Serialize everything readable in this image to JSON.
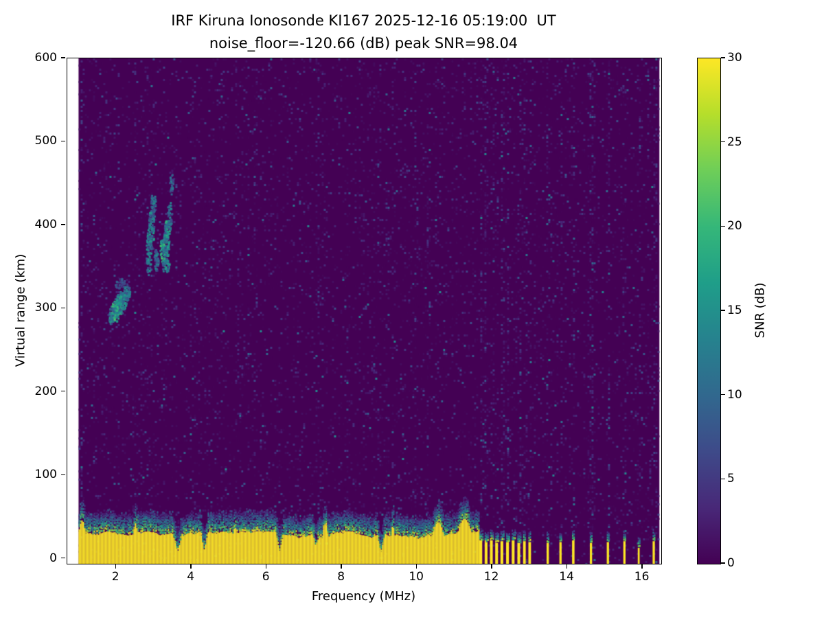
{
  "chart_data": {
    "type": "heatmap",
    "title": "IRF Kiruna Ionosonde KI167 2025-12-16 05:19:00  UT",
    "subtitle": "noise_floor=-120.66 (dB) peak SNR=98.04",
    "xlabel": "Frequency (MHz)",
    "ylabel": "Virtual range (km)",
    "xlim": [
      0.7,
      16.5
    ],
    "ylim": [
      -6,
      600
    ],
    "x_ticks": [
      2,
      4,
      6,
      8,
      10,
      12,
      14,
      16
    ],
    "y_ticks": [
      0,
      100,
      200,
      300,
      400,
      500,
      600
    ],
    "freq_range_mhz": [
      1.0,
      16.45
    ],
    "noise_floor_db": -120.66,
    "peak_snr_db": 98.04,
    "grid": false,
    "background_color": "#ffffff",
    "text_color": "#000000",
    "colorbar": {
      "label": "SNR (dB)",
      "ticks": [
        0,
        5,
        10,
        15,
        20,
        25,
        30
      ],
      "vmin": 0,
      "vmax": 30,
      "position": "right"
    },
    "colormap": {
      "name": "viridis",
      "stops": [
        "#440154",
        "#482878",
        "#3e4a89",
        "#31688e",
        "#26828e",
        "#1f9e89",
        "#35b779",
        "#6ece58",
        "#b5de2b",
        "#fde725"
      ]
    },
    "rfi_stripes": [
      {
        "f": 1.05,
        "s": 2.0
      },
      {
        "f": 5.5,
        "s": 0.5
      },
      {
        "f": 6.25,
        "s": 0.4
      },
      {
        "f": 7.35,
        "s": 0.9
      },
      {
        "f": 9.95,
        "s": 0.5
      },
      {
        "f": 10.3,
        "s": 0.4
      },
      {
        "f": 11.7,
        "s": 1.0
      },
      {
        "f": 11.84,
        "s": 1.2
      },
      {
        "f": 11.98,
        "s": 1.0
      },
      {
        "f": 12.12,
        "s": 1.3
      },
      {
        "f": 12.26,
        "s": 1.0
      },
      {
        "f": 12.41,
        "s": 1.2
      },
      {
        "f": 12.56,
        "s": 1.0
      },
      {
        "f": 12.71,
        "s": 1.3
      },
      {
        "f": 12.86,
        "s": 1.0
      },
      {
        "f": 13.0,
        "s": 1.2
      },
      {
        "f": 13.48,
        "s": 1.4
      },
      {
        "f": 13.82,
        "s": 1.3
      },
      {
        "f": 14.16,
        "s": 1.6
      },
      {
        "f": 14.63,
        "s": 1.3
      },
      {
        "f": 15.08,
        "s": 1.4
      },
      {
        "f": 15.52,
        "s": 1.3
      },
      {
        "f": 15.9,
        "s": 1.0
      },
      {
        "f": 16.3,
        "s": 1.4
      }
    ],
    "ground_clutter": {
      "snr_db": 30,
      "continuous_band": {
        "f_start": 1.0,
        "f_end": 11.65,
        "top_km_min": 23,
        "top_km_max": 33,
        "fringe_km": 22
      },
      "notches": [
        {
          "f": 3.62,
          "w": 0.12,
          "min_km": 8
        },
        {
          "f": 4.33,
          "w": 0.1,
          "min_km": 10
        },
        {
          "f": 6.33,
          "w": 0.1,
          "min_km": 9
        },
        {
          "f": 7.3,
          "w": 0.07,
          "min_km": 14
        },
        {
          "f": 9.03,
          "w": 0.1,
          "min_km": 7
        }
      ],
      "spikes": [
        {
          "f": 1.08,
          "w": 0.15,
          "h": 46
        },
        {
          "f": 2.5,
          "w": 0.12,
          "h": 40
        },
        {
          "f": 5.15,
          "w": 0.1,
          "h": 38
        },
        {
          "f": 7.55,
          "w": 0.12,
          "h": 42
        },
        {
          "f": 9.35,
          "w": 0.1,
          "h": 38
        },
        {
          "f": 10.55,
          "w": 0.25,
          "h": 44
        },
        {
          "f": 11.25,
          "w": 0.3,
          "h": 48
        }
      ],
      "bars": [
        {
          "f": 11.7,
          "w": 0.075,
          "h": 27
        },
        {
          "f": 11.84,
          "w": 0.075,
          "h": 25
        },
        {
          "f": 11.98,
          "w": 0.075,
          "h": 27
        },
        {
          "f": 12.12,
          "w": 0.075,
          "h": 24
        },
        {
          "f": 12.26,
          "w": 0.075,
          "h": 26
        },
        {
          "f": 12.41,
          "w": 0.075,
          "h": 25
        },
        {
          "f": 12.56,
          "w": 0.075,
          "h": 27
        },
        {
          "f": 12.71,
          "w": 0.075,
          "h": 24
        },
        {
          "f": 12.86,
          "w": 0.07,
          "h": 26
        },
        {
          "f": 13.0,
          "w": 0.07,
          "h": 25
        },
        {
          "f": 13.48,
          "w": 0.06,
          "h": 24
        },
        {
          "f": 13.82,
          "w": 0.06,
          "h": 25
        },
        {
          "f": 14.16,
          "w": 0.065,
          "h": 27
        },
        {
          "f": 14.63,
          "w": 0.06,
          "h": 24
        },
        {
          "f": 15.08,
          "w": 0.06,
          "h": 25
        },
        {
          "f": 15.52,
          "w": 0.06,
          "h": 26
        },
        {
          "f": 15.9,
          "w": 0.05,
          "h": 18
        },
        {
          "f": 16.3,
          "w": 0.06,
          "h": 26
        }
      ]
    },
    "echo_trace": {
      "label": "ionospheric echo trace",
      "blobs": [
        {
          "f": 1.88,
          "r": 293,
          "df": 0.1,
          "dr": 12,
          "snr": 13,
          "n": 70
        },
        {
          "f": 1.97,
          "r": 299,
          "df": 0.1,
          "dr": 14,
          "snr": 16,
          "n": 90
        },
        {
          "f": 2.07,
          "r": 305,
          "df": 0.1,
          "dr": 14,
          "snr": 15,
          "n": 90
        },
        {
          "f": 2.17,
          "r": 312,
          "df": 0.09,
          "dr": 12,
          "snr": 14,
          "n": 70
        },
        {
          "f": 2.27,
          "r": 320,
          "df": 0.08,
          "dr": 10,
          "snr": 12,
          "n": 50
        },
        {
          "f": 2.1,
          "r": 330,
          "df": 0.14,
          "dr": 7,
          "snr": 8,
          "n": 35
        },
        {
          "f": 2.85,
          "r": 368,
          "df": 0.07,
          "dr": 28,
          "snr": 12,
          "n": 80
        },
        {
          "f": 2.92,
          "r": 398,
          "df": 0.07,
          "dr": 26,
          "snr": 13,
          "n": 80
        },
        {
          "f": 2.97,
          "r": 425,
          "df": 0.06,
          "dr": 18,
          "snr": 11,
          "n": 45
        },
        {
          "f": 3.05,
          "r": 360,
          "df": 0.06,
          "dr": 14,
          "snr": 12,
          "n": 45
        },
        {
          "f": 3.25,
          "r": 372,
          "df": 0.1,
          "dr": 18,
          "snr": 16,
          "n": 100
        },
        {
          "f": 3.33,
          "r": 385,
          "df": 0.08,
          "dr": 22,
          "snr": 15,
          "n": 80
        },
        {
          "f": 3.4,
          "r": 412,
          "df": 0.06,
          "dr": 18,
          "snr": 12,
          "n": 45
        },
        {
          "f": 3.45,
          "r": 450,
          "df": 0.05,
          "dr": 14,
          "snr": 10,
          "n": 30
        },
        {
          "f": 3.3,
          "r": 352,
          "df": 0.1,
          "dr": 9,
          "snr": 13,
          "n": 45
        }
      ]
    }
  }
}
